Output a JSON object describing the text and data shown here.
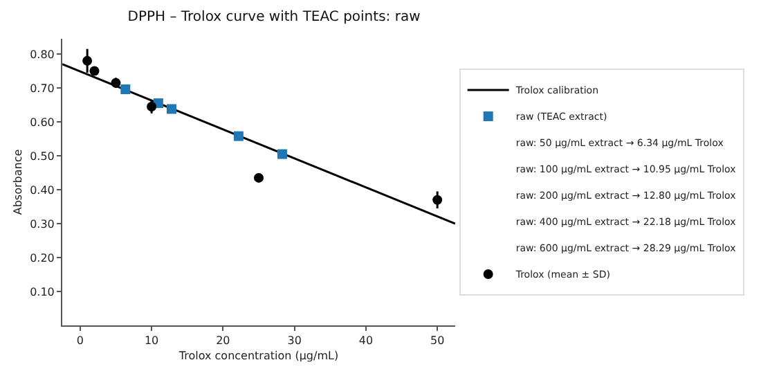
{
  "chart_data": {
    "type": "scatter",
    "title": "DPPH – Trolox curve with TEAC points: raw",
    "xlabel": "Trolox concentration (µg/mL)",
    "ylabel": "Absorbance",
    "xlim": [
      -2.5,
      52.5
    ],
    "xticks": [
      0,
      10,
      20,
      30,
      40,
      50
    ],
    "ylim": [
      0,
      0.845
    ],
    "yticks": [
      {
        "value": 0.1,
        "label": "0.10"
      },
      {
        "value": 0.2,
        "label": "0.20"
      },
      {
        "value": 0.3,
        "label": "0.30"
      },
      {
        "value": 0.4,
        "label": "0.40"
      },
      {
        "value": 0.5,
        "label": "0.50"
      },
      {
        "value": 0.6,
        "label": "0.60"
      },
      {
        "value": 0.7,
        "label": "0.70"
      },
      {
        "value": 0.8,
        "label": "0.80"
      }
    ],
    "legend": "right",
    "series": [
      {
        "name": "Trolox calibration",
        "type": "line",
        "color": "#000000",
        "marker": "none",
        "x": [
          -2.5,
          52.5
        ],
        "values": [
          0.77,
          0.3
        ]
      },
      {
        "name": "raw (TEAC extract)",
        "color": "#1f77b4",
        "marker": "square",
        "x": [
          6.34,
          10.95,
          12.8,
          22.18,
          28.29
        ],
        "values": [
          0.696,
          0.655,
          0.638,
          0.558,
          0.505
        ]
      },
      {
        "name": "Trolox (mean ± SD)",
        "color": "#000000",
        "marker": "circle",
        "x": [
          1,
          2,
          5,
          10,
          25,
          50
        ],
        "values": [
          0.78,
          0.75,
          0.715,
          0.645,
          0.435,
          0.37
        ],
        "errors": [
          0.035,
          0.012,
          0.015,
          0.02,
          0.005,
          0.025
        ]
      }
    ],
    "annotations": [
      "raw: 50 µg/mL extract → 6.34 µg/mL Trolox",
      "raw: 100 µg/mL extract → 10.95 µg/mL Trolox",
      "raw: 200 µg/mL extract → 12.80 µg/mL Trolox",
      "raw: 400 µg/mL extract → 22.18 µg/mL Trolox",
      "raw: 600 µg/mL extract → 28.29 µg/mL Trolox"
    ]
  }
}
